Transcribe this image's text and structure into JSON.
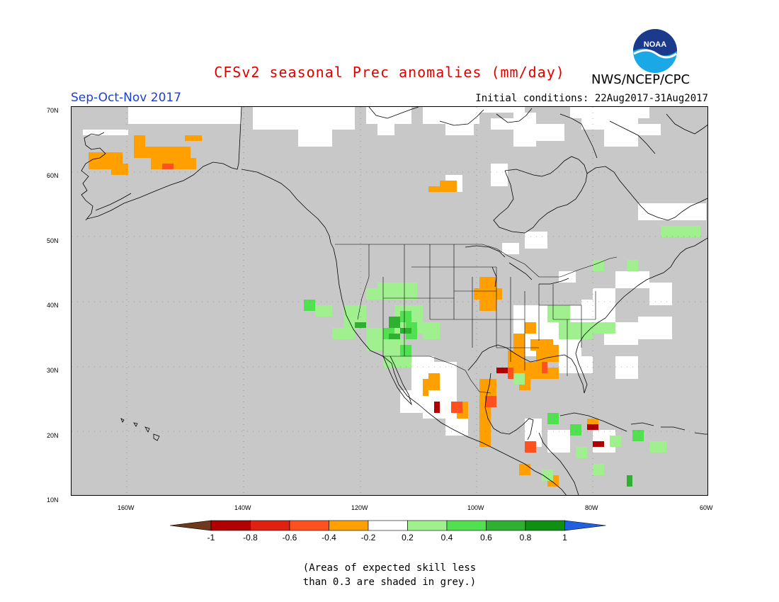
{
  "title": "CFSv2 seasonal Prec anomalies (mm/day)",
  "agency": "NWS/NCEP/CPC",
  "logo": {
    "text": "NOAA"
  },
  "season": "Sep-Oct-Nov 2017",
  "initial_conditions": "Initial conditions: 22Aug2017-31Aug2017",
  "lat_labels": [
    "70N",
    "60N",
    "50N",
    "40N",
    "30N",
    "20N",
    "10N"
  ],
  "lon_labels": [
    "160W",
    "140W",
    "120W",
    "100W",
    "80W",
    "60W"
  ],
  "colorbar": {
    "ticks": [
      "-1",
      "-0.8",
      "-0.6",
      "-0.4",
      "-0.2",
      "0.2",
      "0.4",
      "0.6",
      "0.8",
      "1"
    ],
    "colors": [
      "#6e3a1e",
      "#b00000",
      "#e02010",
      "#ff5020",
      "#ffa000",
      "#ffffff",
      "#a0f090",
      "#50e050",
      "#30b030",
      "#109010",
      "#2060e0"
    ]
  },
  "footnote": [
    "(Areas of expected skill less",
    "than 0.3 are shaded in grey.)"
  ],
  "map_colors": {
    "background": "#c8c8c8",
    "neutral": "#ffffff",
    "dry_light": "#ffa000",
    "dry_moderate": "#ff5020",
    "dry_strong": "#b00000",
    "wet_light": "#a0f090",
    "wet_moderate": "#50e050",
    "wet_strong": "#30b030",
    "boundary": "#000000",
    "grid": "#707070"
  }
}
